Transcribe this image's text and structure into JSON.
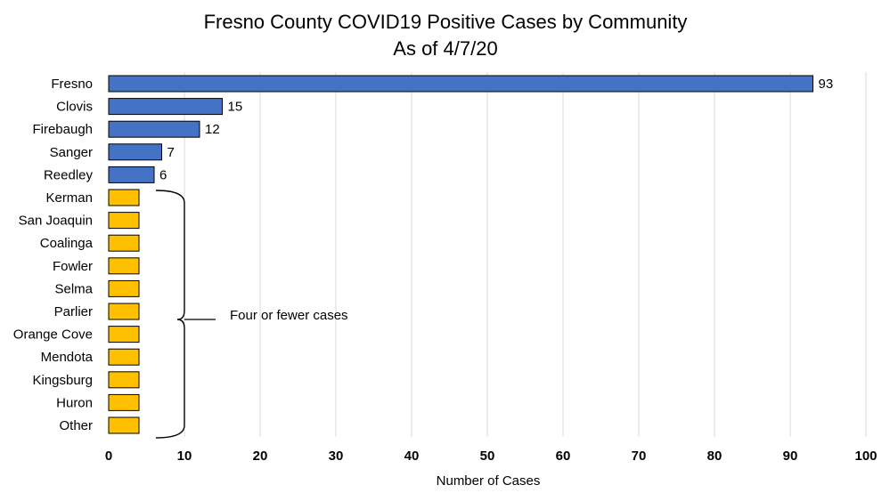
{
  "chart_data": {
    "type": "bar",
    "orientation": "horizontal",
    "title": "Fresno County COVID19 Positive Cases by Community",
    "subtitle": "As of 4/7/20",
    "xlabel": "Number of Cases",
    "ylabel": "",
    "xlim": [
      0,
      100
    ],
    "x_ticks": [
      0,
      10,
      20,
      30,
      40,
      50,
      60,
      70,
      80,
      90,
      100
    ],
    "grid": "vertical",
    "categories": [
      "Fresno",
      "Clovis",
      "Firebaugh",
      "Sanger",
      "Reedley",
      "Kerman",
      "San Joaquin",
      "Coalinga",
      "Fowler",
      "Selma",
      "Parlier",
      "Orange Cove",
      "Mendota",
      "Kingsburg",
      "Huron",
      "Other"
    ],
    "values": [
      93,
      15,
      12,
      7,
      6,
      4,
      4,
      4,
      4,
      4,
      4,
      4,
      4,
      4,
      4,
      4
    ],
    "value_labels": [
      "93",
      "15",
      "12",
      "7",
      "6",
      "",
      "",
      "",
      "",
      "",
      "",
      "",
      "",
      "",
      "",
      ""
    ],
    "colors": {
      "reported": "#4472C4",
      "four_or_fewer": "#FFC000",
      "outline": "#000000",
      "grid": "#D9D9D9"
    },
    "groups": [
      "reported",
      "reported",
      "reported",
      "reported",
      "reported",
      "four_or_fewer",
      "four_or_fewer",
      "four_or_fewer",
      "four_or_fewer",
      "four_or_fewer",
      "four_or_fewer",
      "four_or_fewer",
      "four_or_fewer",
      "four_or_fewer",
      "four_or_fewer",
      "four_or_fewer"
    ],
    "annotation": {
      "text": "Four or fewer cases",
      "from_category": "Kerman",
      "to_category": "Other"
    }
  }
}
